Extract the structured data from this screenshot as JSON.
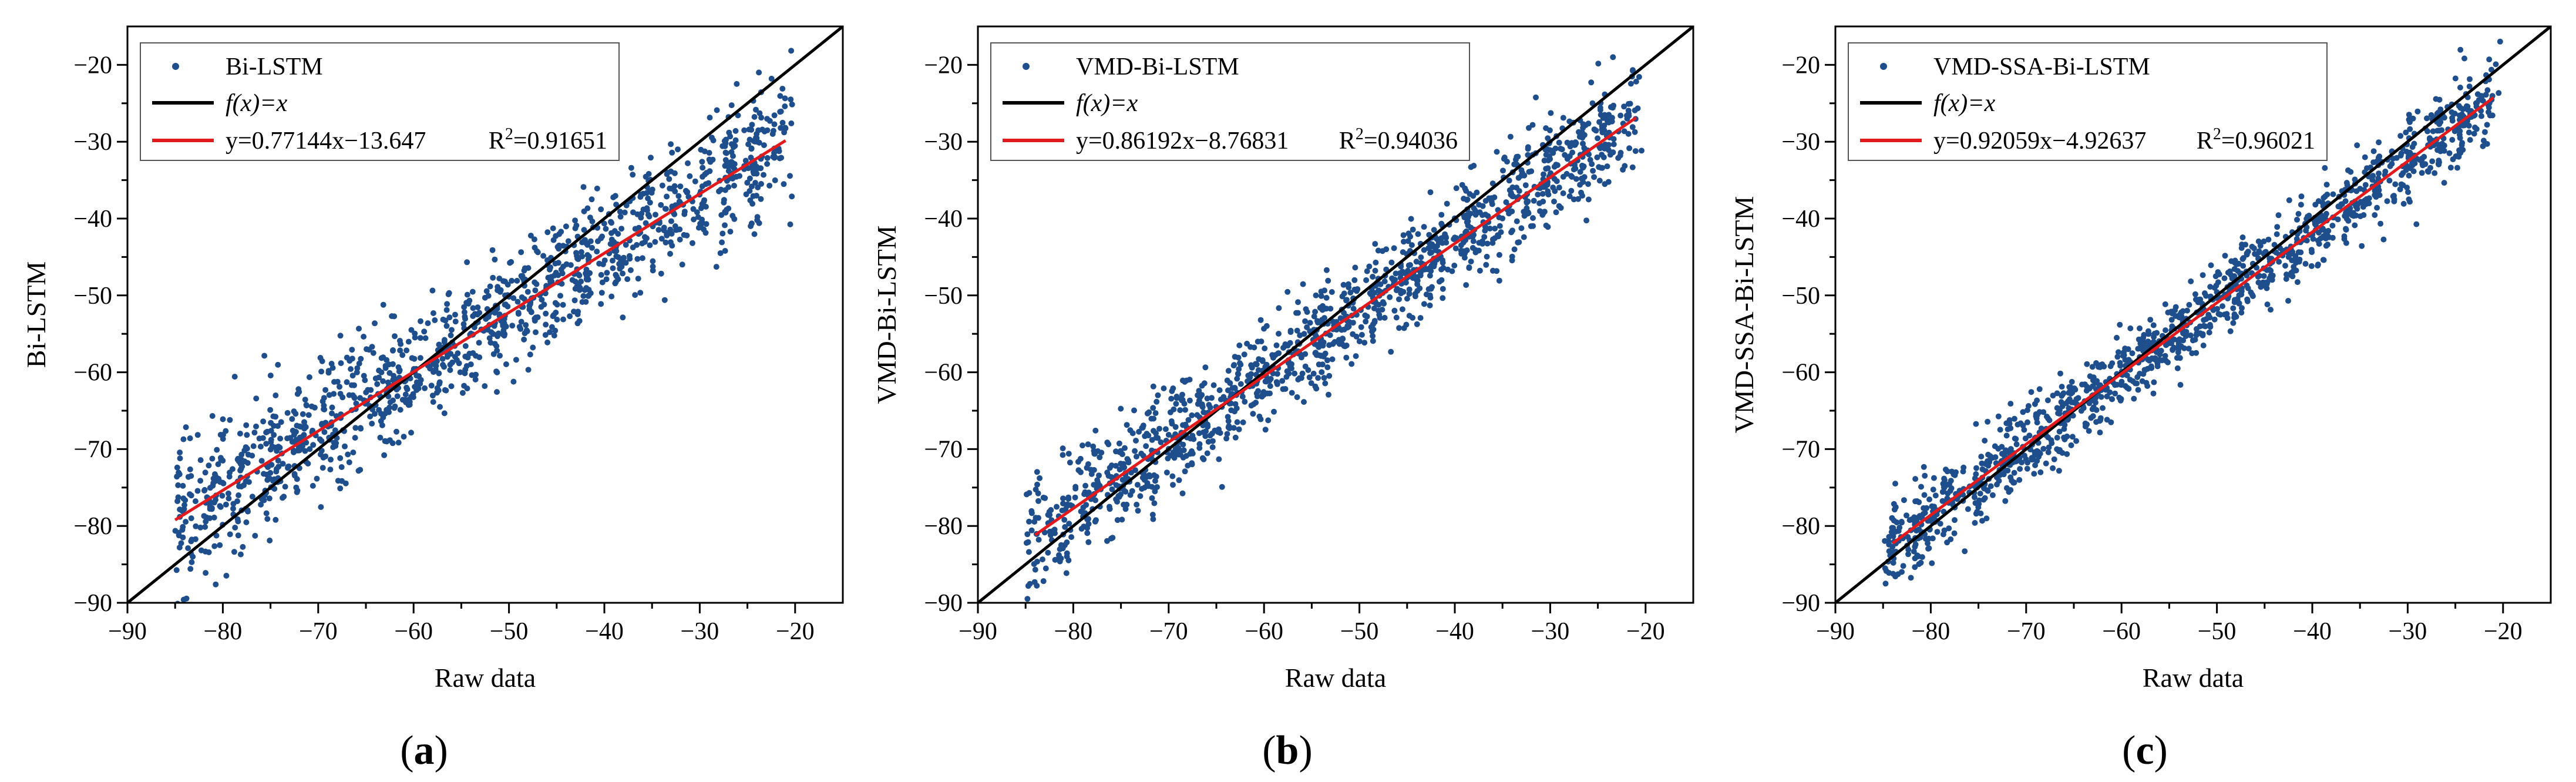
{
  "chart_data": [
    {
      "type": "scatter",
      "panel_label": "(a)",
      "panel_letter": "a",
      "xlabel": "Raw data",
      "ylabel": "Bi-LSTM",
      "xlim": [
        -90,
        -15
      ],
      "ylim": [
        -90,
        -15
      ],
      "xticks": [
        -90,
        -80,
        -70,
        -60,
        -50,
        -40,
        -30,
        -20
      ],
      "yticks": [
        -90,
        -80,
        -70,
        -60,
        -50,
        -40,
        -30,
        -20
      ],
      "xtick_labels": [
        "−90",
        "−80",
        "−70",
        "−60",
        "−50",
        "−40",
        "−30",
        "−20"
      ],
      "ytick_labels": [
        "−90",
        "−80",
        "−70",
        "−60",
        "−50",
        "−40",
        "−30",
        "−20"
      ],
      "legend": {
        "location": "top-left",
        "entries": [
          {
            "label": "Bi-LSTM",
            "kind": "marker"
          },
          {
            "label": "f(x)=x",
            "kind": "line"
          },
          {
            "label": "y=0.77144x−13.647",
            "r2_prefix": "R",
            "r2_value": "=0.91651",
            "kind": "line"
          }
        ]
      },
      "series": [
        {
          "name": "Bi-LSTM",
          "kind": "scatter",
          "n_points": 1300,
          "x_range": [
            -85,
            -21
          ],
          "spread_edge": 5.0,
          "spread_mid": 3.5
        },
        {
          "name": "f(x)=x",
          "kind": "line",
          "x": [
            -90,
            -15
          ],
          "y": [
            -90,
            -15
          ]
        },
        {
          "name": "fit",
          "kind": "line",
          "slope": 0.77144,
          "intercept": -13.647,
          "x": [
            -85,
            -21
          ]
        }
      ]
    },
    {
      "type": "scatter",
      "panel_label": "(b)",
      "panel_letter": "b",
      "xlabel": "Raw data",
      "ylabel": "VMD-Bi-LSTM",
      "xlim": [
        -90,
        -15
      ],
      "ylim": [
        -90,
        -15
      ],
      "xticks": [
        -90,
        -80,
        -70,
        -60,
        -50,
        -40,
        -30,
        -20
      ],
      "yticks": [
        -90,
        -80,
        -70,
        -60,
        -50,
        -40,
        -30,
        -20
      ],
      "xtick_labels": [
        "−90",
        "−80",
        "−70",
        "−60",
        "−50",
        "−40",
        "−30",
        "−20"
      ],
      "ytick_labels": [
        "−90",
        "−80",
        "−70",
        "−60",
        "−50",
        "−40",
        "−30",
        "−20"
      ],
      "legend": {
        "location": "top-left",
        "entries": [
          {
            "label": "VMD-Bi-LSTM",
            "kind": "marker"
          },
          {
            "label": "f(x)=x",
            "kind": "line"
          },
          {
            "label": "y=0.86192x−8.76831",
            "r2_prefix": "R",
            "r2_value": "=0.94036",
            "kind": "line"
          }
        ]
      },
      "series": [
        {
          "name": "VMD-Bi-LSTM",
          "kind": "scatter",
          "n_points": 1300,
          "x_range": [
            -85,
            -21
          ],
          "spread_edge": 3.5,
          "spread_mid": 3.0
        },
        {
          "name": "f(x)=x",
          "kind": "line",
          "x": [
            -90,
            -15
          ],
          "y": [
            -90,
            -15
          ]
        },
        {
          "name": "fit",
          "kind": "line",
          "slope": 0.86192,
          "intercept": -8.76831,
          "x": [
            -84,
            -21
          ]
        }
      ]
    },
    {
      "type": "scatter",
      "panel_label": "(c)",
      "panel_letter": "c",
      "xlabel": "Raw data",
      "ylabel": "VMD-SSA-Bi-LSTM",
      "xlim": [
        -90,
        -15
      ],
      "ylim": [
        -90,
        -15
      ],
      "xticks": [
        -90,
        -80,
        -70,
        -60,
        -50,
        -40,
        -30,
        -20
      ],
      "yticks": [
        -90,
        -80,
        -70,
        -60,
        -50,
        -40,
        -30,
        -20
      ],
      "xtick_labels": [
        "−90",
        "−80",
        "−70",
        "−60",
        "−50",
        "−40",
        "−30",
        "−20"
      ],
      "ytick_labels": [
        "−90",
        "−80",
        "−70",
        "−60",
        "−50",
        "−40",
        "−30",
        "−20"
      ],
      "legend": {
        "location": "top-left",
        "entries": [
          {
            "label": "VMD-SSA-Bi-LSTM",
            "kind": "marker"
          },
          {
            "label": "f(x)=x",
            "kind": "line"
          },
          {
            "label": "y=0.92059x−4.92637",
            "r2_prefix": "R",
            "r2_value": "=0.96021",
            "kind": "line"
          }
        ]
      },
      "series": [
        {
          "name": "VMD-SSA-Bi-LSTM",
          "kind": "scatter",
          "n_points": 1300,
          "x_range": [
            -85,
            -21
          ],
          "spread_edge": 2.8,
          "spread_mid": 2.3
        },
        {
          "name": "f(x)=x",
          "kind": "line",
          "x": [
            -90,
            -15
          ],
          "y": [
            -90,
            -15
          ]
        },
        {
          "name": "fit",
          "kind": "line",
          "slope": 0.92059,
          "intercept": -4.92637,
          "x": [
            -84,
            -21
          ]
        }
      ]
    }
  ],
  "colors": {
    "points": "#1f4e8c",
    "identity_line": "#000000",
    "fit_line": "#e31a1c",
    "axes": "#000000"
  }
}
